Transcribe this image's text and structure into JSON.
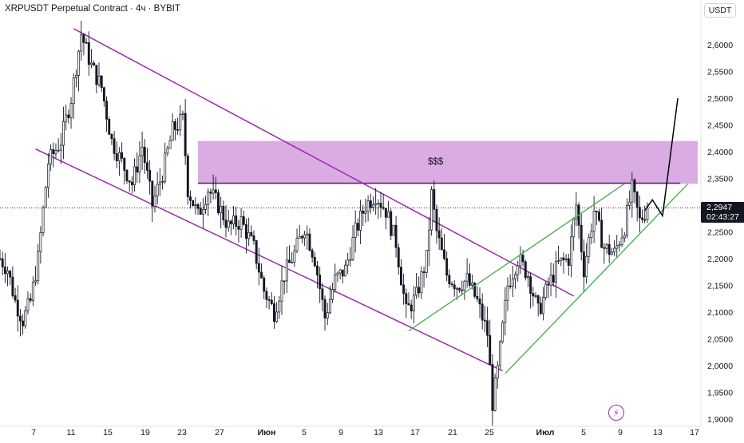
{
  "header": {
    "title": "XRPUSDT Perpetual Contract · 4ч · BYBIT",
    "currency": "USDT"
  },
  "price_tag": {
    "price": "2,2947",
    "countdown": "02:43:27"
  },
  "zone_label": "$$$",
  "logo_icon": "lightning-icon",
  "colors": {
    "channel": "#9c27b0",
    "wedge": "#4caf50",
    "zone_fill": "#d8a8e2",
    "candle": "#131722",
    "projection": "#000000",
    "price_line": "#131722"
  },
  "chart_data": {
    "type": "candlestick",
    "title": "XRPUSDT Perpetual Contract · 4ч · BYBIT",
    "y_axis": {
      "ticks": [
        "2,6000",
        "2,5500",
        "2,5000",
        "2,4500",
        "2,4000",
        "2,3500",
        "2,3000",
        "2,2500",
        "2,2000",
        "2,1500",
        "2,1000",
        "2,0500",
        "2,0000",
        "1,9500",
        "1,9000"
      ],
      "range": [
        1.9,
        2.64
      ]
    },
    "x_axis": {
      "ticks": [
        "7",
        "11",
        "15",
        "19",
        "23",
        "27",
        "Июн",
        "5",
        "9",
        "13",
        "17",
        "21",
        "25",
        "Июл",
        "5",
        "9",
        "13",
        "17"
      ],
      "bold_ticks": [
        "Июн",
        "Июл"
      ]
    },
    "path": [
      {
        "i": 0,
        "p": 2.2
      },
      {
        "i": 3,
        "p": 2.18
      },
      {
        "i": 6,
        "p": 2.12
      },
      {
        "i": 9,
        "p": 2.085
      },
      {
        "i": 12,
        "p": 2.12
      },
      {
        "i": 15,
        "p": 2.2
      },
      {
        "i": 19,
        "p": 2.38
      },
      {
        "i": 24,
        "p": 2.42
      },
      {
        "i": 28,
        "p": 2.5
      },
      {
        "i": 32,
        "p": 2.62
      },
      {
        "i": 36,
        "p": 2.56
      },
      {
        "i": 40,
        "p": 2.52
      },
      {
        "i": 44,
        "p": 2.42
      },
      {
        "i": 48,
        "p": 2.38
      },
      {
        "i": 52,
        "p": 2.34
      },
      {
        "i": 56,
        "p": 2.41
      },
      {
        "i": 60,
        "p": 2.3
      },
      {
        "i": 64,
        "p": 2.36
      },
      {
        "i": 68,
        "p": 2.44
      },
      {
        "i": 72,
        "p": 2.46
      },
      {
        "i": 74,
        "p": 2.33
      },
      {
        "i": 78,
        "p": 2.28
      },
      {
        "i": 82,
        "p": 2.33
      },
      {
        "i": 86,
        "p": 2.3
      },
      {
        "i": 90,
        "p": 2.26
      },
      {
        "i": 95,
        "p": 2.27
      },
      {
        "i": 100,
        "p": 2.22
      },
      {
        "i": 104,
        "p": 2.14
      },
      {
        "i": 108,
        "p": 2.1
      },
      {
        "i": 112,
        "p": 2.17
      },
      {
        "i": 116,
        "p": 2.21
      },
      {
        "i": 120,
        "p": 2.26
      },
      {
        "i": 124,
        "p": 2.2
      },
      {
        "i": 128,
        "p": 2.09
      },
      {
        "i": 132,
        "p": 2.16
      },
      {
        "i": 136,
        "p": 2.18
      },
      {
        "i": 140,
        "p": 2.25
      },
      {
        "i": 144,
        "p": 2.3
      },
      {
        "i": 148,
        "p": 2.32
      },
      {
        "i": 152,
        "p": 2.29
      },
      {
        "i": 156,
        "p": 2.23
      },
      {
        "i": 160,
        "p": 2.1
      },
      {
        "i": 164,
        "p": 2.13
      },
      {
        "i": 168,
        "p": 2.2
      },
      {
        "i": 170,
        "p": 2.32
      },
      {
        "i": 172,
        "p": 2.25
      },
      {
        "i": 176,
        "p": 2.17
      },
      {
        "i": 180,
        "p": 2.15
      },
      {
        "i": 184,
        "p": 2.16
      },
      {
        "i": 188,
        "p": 2.12
      },
      {
        "i": 192,
        "p": 2.06
      },
      {
        "i": 194,
        "p": 1.93
      },
      {
        "i": 196,
        "p": 1.99
      },
      {
        "i": 200,
        "p": 2.15
      },
      {
        "i": 204,
        "p": 2.2
      },
      {
        "i": 208,
        "p": 2.17
      },
      {
        "i": 212,
        "p": 2.1
      },
      {
        "i": 216,
        "p": 2.15
      },
      {
        "i": 220,
        "p": 2.19
      },
      {
        "i": 224,
        "p": 2.2
      },
      {
        "i": 227,
        "p": 2.3
      },
      {
        "i": 230,
        "p": 2.18
      },
      {
        "i": 234,
        "p": 2.29
      },
      {
        "i": 238,
        "p": 2.22
      },
      {
        "i": 242,
        "p": 2.21
      },
      {
        "i": 246,
        "p": 2.26
      },
      {
        "i": 249,
        "p": 2.33
      },
      {
        "i": 252,
        "p": 2.27
      },
      {
        "i": 255,
        "p": 2.295
      }
    ],
    "zone": {
      "from_index": 78,
      "to_index": 290,
      "top": 2.42,
      "bottom": 2.34,
      "label": "$$$"
    },
    "resistance_line": {
      "from_index": 78,
      "to_index": 268,
      "price": 2.341
    },
    "drawings": {
      "channel_upper": [
        {
          "i": 29,
          "p": 2.63
        },
        {
          "i": 226,
          "p": 2.13
        }
      ],
      "channel_lower": [
        {
          "i": 14,
          "p": 2.405
        },
        {
          "i": 198,
          "p": 1.99
        }
      ],
      "wedge_lower": [
        {
          "i": 199,
          "p": 1.985
        },
        {
          "i": 271,
          "p": 2.34
        }
      ],
      "wedge_upper": [
        {
          "i": 161,
          "p": 2.065
        },
        {
          "i": 246,
          "p": 2.34
        }
      ],
      "projection": [
        {
          "i": 254,
          "p": 2.29
        },
        {
          "i": 257,
          "p": 2.31
        },
        {
          "i": 261,
          "p": 2.28
        },
        {
          "i": 267,
          "p": 2.5
        }
      ]
    },
    "last_price": 2.2947
  }
}
